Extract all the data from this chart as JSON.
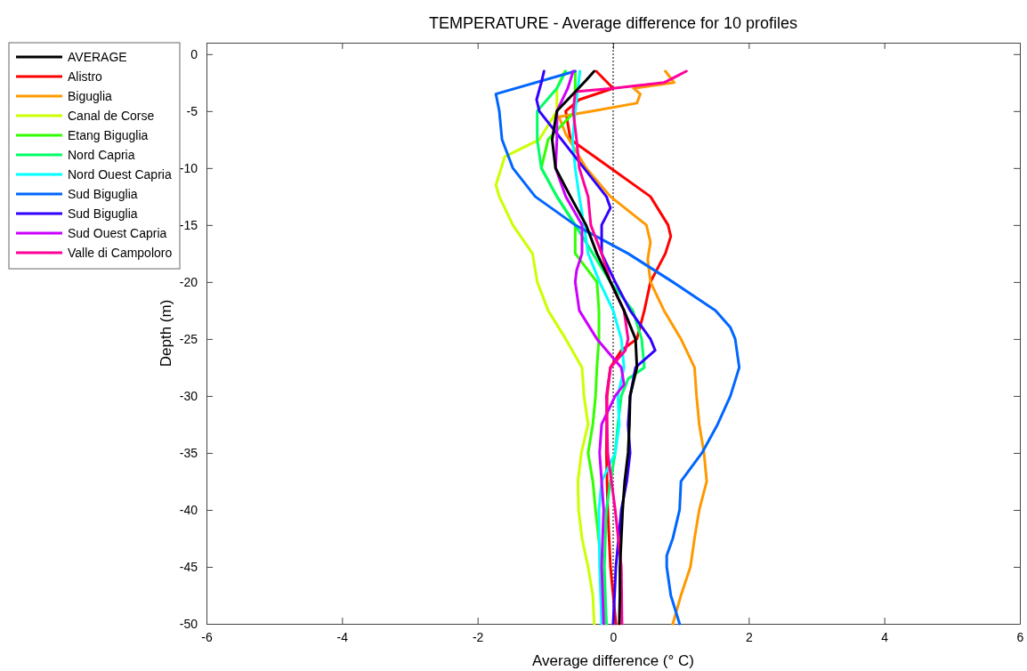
{
  "chart_data": {
    "type": "line",
    "title": "TEMPERATURE - Average difference for 10 profiles",
    "xlabel": "Average difference  (° C)",
    "ylabel": "Depth (m)",
    "xlim": [
      -6,
      6
    ],
    "xticks": [
      -6,
      -4,
      -2,
      0,
      2,
      4,
      6
    ],
    "ylim": [
      -50,
      1
    ],
    "yticks": [
      -50,
      -45,
      -40,
      -35,
      -30,
      -25,
      -20,
      -15,
      -10,
      -5,
      0
    ],
    "grid": false,
    "legend": "top left",
    "marker": "none",
    "line_style": "solid",
    "ref_lines": [
      {
        "axis": "x",
        "value": 0,
        "color": "#000000",
        "line_style": "dotted"
      }
    ],
    "series": [
      {
        "name": "AVERAGE",
        "color": "#000000",
        "x": [
          -0.28,
          -0.4,
          -0.83,
          -0.9,
          -0.85,
          -0.63,
          -0.4,
          -0.24,
          -0.04,
          0.16,
          0.33,
          0.35,
          0.25,
          0.24,
          0.22,
          0.17,
          0.14,
          0.12,
          0.1,
          0.1,
          0.09
        ],
        "values": [
          -1.5,
          -2.3,
          -5,
          -7.5,
          -10,
          -12.5,
          -15,
          -17.5,
          -20,
          -22.5,
          -25,
          -27.5,
          -30,
          -32.5,
          -35,
          -37.5,
          -40,
          -42.5,
          -45,
          -47.5,
          -50
        ]
      },
      {
        "name": "Alistro",
        "color": "#ff0000",
        "x": [
          -0.25,
          0,
          -0.5,
          -0.7,
          -0.63,
          -0.04,
          0.55,
          0.81,
          0.85,
          0.77,
          0.55,
          0.46,
          0.35,
          0.12,
          -0.04,
          -0.09,
          -0.1,
          -0.08,
          -0.04,
          0.04
        ],
        "values": [
          -1.5,
          -3,
          -4,
          -5,
          -7.5,
          -10,
          -12.5,
          -15,
          -16,
          -17.5,
          -20,
          -22.5,
          -25,
          -26,
          -27.5,
          -30,
          -35,
          -40,
          -45,
          -50
        ]
      },
      {
        "name": "Biguglia",
        "color": "#ff9900",
        "x": [
          0.77,
          0.9,
          0.3,
          0.4,
          0.35,
          -0.3,
          -0.8,
          -0.7,
          -0.4,
          -0.04,
          0.49,
          0.55,
          0.51,
          0.55,
          0.75,
          1.0,
          1.2,
          1.23,
          1.27,
          1.34,
          1.38,
          1.27,
          1.2,
          1.14,
          1.0,
          0.88
        ],
        "values": [
          -1.5,
          -2.5,
          -3,
          -3.5,
          -4.3,
          -5,
          -5.5,
          -7,
          -10,
          -12.5,
          -15,
          -16.5,
          -18,
          -20,
          -22.5,
          -25,
          -27.5,
          -30,
          -32.5,
          -35,
          -37.5,
          -40,
          -42.5,
          -45,
          -47.5,
          -50
        ]
      },
      {
        "name": "Canal de Corse",
        "color": "#ccff00",
        "x": [
          -0.72,
          -0.83,
          -0.83,
          -1.09,
          -1.6,
          -1.73,
          -1.68,
          -1.48,
          -1.19,
          -1.12,
          -0.96,
          -0.7,
          -0.46,
          -0.43,
          -0.37,
          -0.47,
          -0.52,
          -0.51,
          -0.46,
          -0.37,
          -0.3,
          -0.28
        ],
        "values": [
          -1.5,
          -3,
          -5,
          -7.5,
          -9,
          -11.5,
          -12.5,
          -15,
          -17.5,
          -20,
          -22.5,
          -25,
          -27.5,
          -30,
          -32.5,
          -35,
          -37.5,
          -40,
          -42.5,
          -45,
          -47.5,
          -50
        ]
      },
      {
        "name": "Etang Biguglia",
        "color": "#33ff00",
        "x": [
          -0.56,
          -0.56,
          -0.96,
          -1.06,
          -0.83,
          -0.56,
          -0.56,
          -0.24,
          -0.21,
          -0.21,
          -0.24,
          -0.26,
          -0.3,
          -0.37,
          -0.3,
          -0.26,
          -0.17,
          -0.1
        ],
        "values": [
          -1.5,
          -5,
          -7.5,
          -10,
          -12.5,
          -15,
          -17.5,
          -20,
          -22.5,
          -25,
          -27.5,
          -30,
          -32.5,
          -35,
          -37.5,
          -40,
          -45,
          -50
        ]
      },
      {
        "name": "Nord Capria",
        "color": "#00ff66",
        "x": [
          -0.7,
          -0.83,
          -1.12,
          -1.12,
          -1.06,
          -0.83,
          -0.56,
          -0.3,
          -0.04,
          0.29,
          0.42,
          0.46,
          0.22,
          0.12,
          0.07,
          0.03,
          -0.04,
          -0.1,
          -0.13,
          -0.1
        ],
        "values": [
          -1.5,
          -3,
          -5,
          -7.5,
          -10,
          -12.5,
          -15,
          -17.5,
          -20,
          -22.5,
          -25,
          -27.5,
          -28.5,
          -30,
          -32.5,
          -35,
          -37.5,
          -40,
          -45,
          -50
        ]
      },
      {
        "name": "Nord Ouest Capria",
        "color": "#00ffff",
        "x": [
          -0.49,
          -0.56,
          -0.6,
          -0.56,
          -0.5,
          -0.43,
          -0.37,
          -0.2,
          0,
          0.12,
          0.16,
          0.07,
          0.09,
          0.03,
          -0.17,
          -0.21,
          -0.2,
          -0.17
        ],
        "values": [
          -1.5,
          -5,
          -7.5,
          -10,
          -12.5,
          -15,
          -17.5,
          -20,
          -22.5,
          -25,
          -27.5,
          -30,
          -32.5,
          -35,
          -37.5,
          -40,
          -45,
          -50
        ]
      },
      {
        "name": "Sud Biguglia",
        "color": "#0066ff",
        "x": [
          -0.56,
          -1.73,
          -1.68,
          -1.64,
          -1.48,
          -1.15,
          -0.56,
          0.22,
          0.88,
          1.51,
          1.73,
          1.8,
          1.86,
          1.73,
          1.54,
          1.31,
          1.0,
          0.98,
          0.88,
          0.79,
          0.79,
          0.85,
          0.98
        ],
        "values": [
          -1.5,
          -3.5,
          -5,
          -7.5,
          -10,
          -12.5,
          -15,
          -17.5,
          -20,
          -22.5,
          -24,
          -25,
          -27.5,
          -30,
          -32.5,
          -35,
          -37.5,
          -40,
          -42.5,
          -44,
          -45,
          -47.5,
          -50
        ]
      },
      {
        "name": "Sud Biguglia",
        "color": "#3300ff",
        "x": [
          -1.02,
          -1.06,
          -1.13,
          -1.09,
          -0.76,
          -0.43,
          -0.1,
          -0.04,
          -0.17,
          -0.17,
          0.03,
          0.25,
          0.55,
          0.62,
          0.33,
          0.25,
          0.22,
          0.25,
          0.2,
          0.12,
          0.04,
          0
        ],
        "values": [
          -1.5,
          -2.5,
          -4,
          -5,
          -7.5,
          -10,
          -12.5,
          -13.5,
          -15,
          -17.5,
          -20,
          -22.5,
          -25,
          -26,
          -27.5,
          -30,
          -32.5,
          -35,
          -37.5,
          -40,
          -45,
          -50
        ]
      },
      {
        "name": "Sud Ouest Capria",
        "color": "#cc00ff",
        "x": [
          -0.59,
          -0.67,
          -0.83,
          -0.83,
          -0.85,
          -0.7,
          -0.46,
          -0.46,
          -0.54,
          -0.56,
          -0.5,
          -0.24,
          0.12,
          0.16,
          0.03,
          -0.17,
          -0.2,
          -0.17,
          -0.14,
          -0.17,
          -0.14
        ],
        "values": [
          -1.5,
          -3,
          -5,
          -7.5,
          -10,
          -12.5,
          -15,
          -17.5,
          -19,
          -20,
          -22.5,
          -25,
          -27.5,
          -29,
          -30,
          -32.5,
          -35,
          -37.5,
          -40,
          -45,
          -50
        ]
      },
      {
        "name": "Valle di Campoloro",
        "color": "#ff0099",
        "x": [
          1.08,
          0.75,
          0,
          -0.56,
          -0.59,
          -0.54,
          -0.5,
          -0.37,
          -0.33,
          -0.17,
          -0.04,
          0.16,
          0.22,
          0.18,
          -0.04,
          -0.1,
          -0.08,
          0.03,
          0.12,
          0.13
        ],
        "values": [
          -1.5,
          -2.5,
          -3,
          -3.3,
          -5,
          -7.5,
          -10,
          -12.5,
          -15,
          -17.5,
          -20,
          -22.5,
          -25,
          -26,
          -27.5,
          -30,
          -35,
          -40,
          -45,
          -50
        ]
      }
    ]
  }
}
